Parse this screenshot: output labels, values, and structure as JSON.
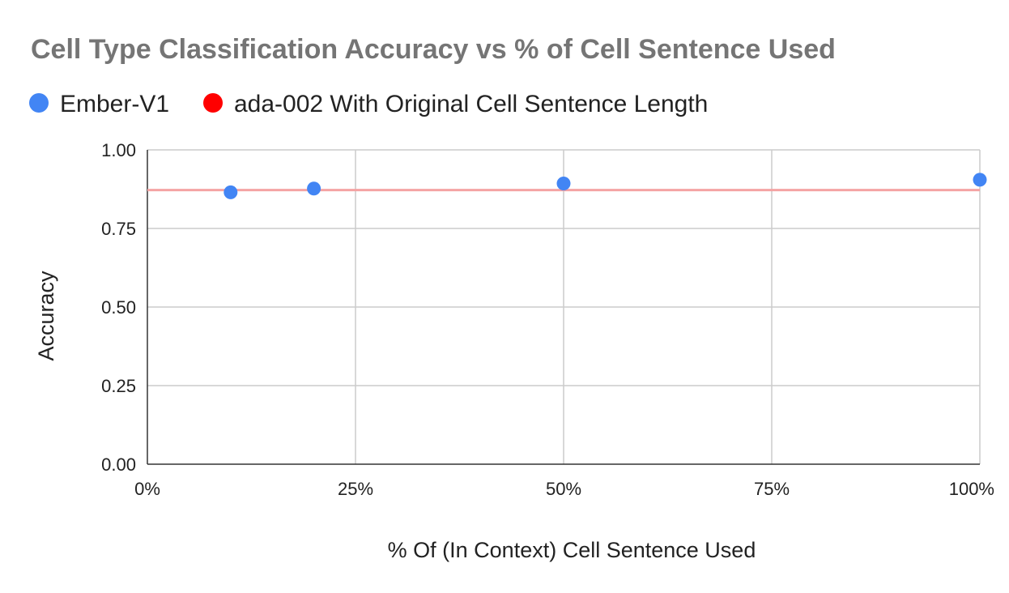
{
  "chart_data": {
    "type": "scatter",
    "title": "Cell Type Classification Accuracy vs % of Cell Sentence Used",
    "xlabel": "% Of (In Context) Cell Sentence Used",
    "ylabel": "Accuracy",
    "xlim": [
      0,
      100
    ],
    "ylim": [
      0,
      1
    ],
    "x_ticks": [
      "0%",
      "25%",
      "50%",
      "75%",
      "100%"
    ],
    "y_ticks": [
      "0.00",
      "0.25",
      "0.50",
      "0.75",
      "1.00"
    ],
    "grid": true,
    "legend_position": "top-left",
    "series": [
      {
        "name": "Ember-V1",
        "kind": "points",
        "color": "#4285f4",
        "x": [
          10,
          20,
          50,
          100
        ],
        "y": [
          0.865,
          0.877,
          0.893,
          0.905
        ]
      },
      {
        "name": "ada-002 With Original Cell Sentence Length",
        "kind": "reference-line",
        "color": "#ff0000",
        "line_color": "#f4a3a3",
        "y": 0.872
      }
    ]
  }
}
